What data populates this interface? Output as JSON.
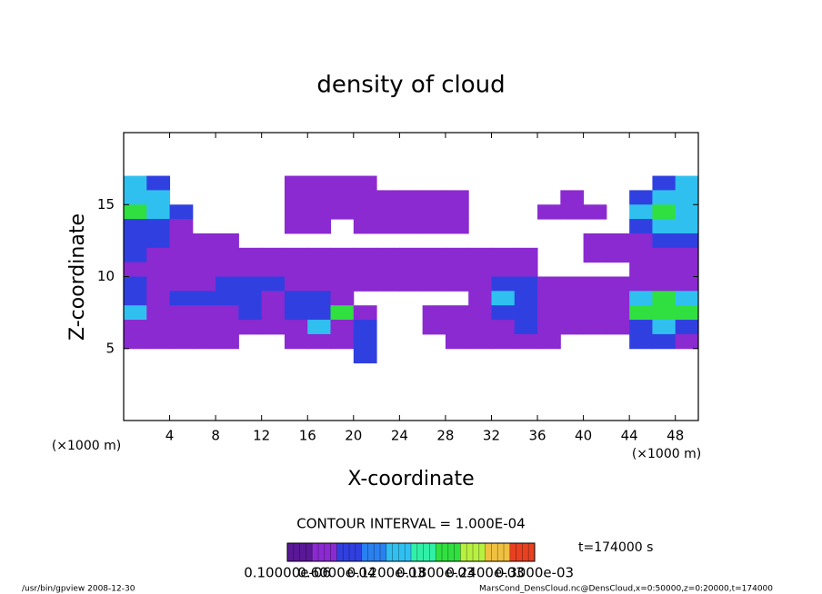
{
  "chart_data": {
    "type": "heatmap",
    "title": "density of cloud",
    "xlabel": "X-coordinate",
    "ylabel": "Z-coordinate",
    "x_unit_label": "(×1000 m)",
    "y_unit_label": "(×1000 m)",
    "contour_interval": "CONTOUR INTERVAL = 1.000E-04",
    "time_label": "t=174000 s",
    "footer_left": "/usr/bin/gpview  2008-12-30",
    "footer_right": "MarsCond_DensCloud.nc@DensCloud,x=0:50000,z=0:20000,t=174000",
    "xlim": [
      0,
      50
    ],
    "ylim": [
      0,
      20
    ],
    "xticks": [
      4,
      8,
      12,
      16,
      20,
      24,
      28,
      32,
      36,
      40,
      44,
      48
    ],
    "yticks": [
      5,
      10,
      15
    ],
    "x_edges": [
      0,
      2,
      4,
      6,
      8,
      10,
      12,
      14,
      16,
      18,
      20,
      22,
      24,
      26,
      28,
      30,
      32,
      34,
      36,
      38,
      40,
      42,
      44,
      46,
      48,
      50
    ],
    "z_edges": [
      17,
      16,
      15,
      14,
      13,
      12,
      11,
      10,
      9,
      8,
      7,
      6,
      5,
      4
    ],
    "values": [
      [
        0.00013,
        8e-05,
        null,
        null,
        null,
        null,
        null,
        4e-05,
        4e-05,
        4e-05,
        4e-05,
        null,
        null,
        null,
        null,
        null,
        null,
        null,
        null,
        null,
        null,
        null,
        null,
        8e-05,
        0.00013
      ],
      [
        0.00013,
        0.00013,
        null,
        null,
        null,
        null,
        null,
        4e-05,
        4e-05,
        4e-05,
        4e-05,
        4e-05,
        4e-05,
        4e-05,
        4e-05,
        null,
        null,
        null,
        null,
        4e-05,
        null,
        null,
        8e-05,
        0.00013,
        0.00013
      ],
      [
        0.00019,
        0.00013,
        8e-05,
        null,
        null,
        null,
        null,
        4e-05,
        4e-05,
        4e-05,
        4e-05,
        4e-05,
        4e-05,
        4e-05,
        4e-05,
        null,
        null,
        null,
        4e-05,
        4e-05,
        4e-05,
        null,
        0.00013,
        0.00019,
        0.00013
      ],
      [
        8e-05,
        8e-05,
        4e-05,
        null,
        null,
        null,
        null,
        4e-05,
        4e-05,
        null,
        4e-05,
        4e-05,
        4e-05,
        4e-05,
        4e-05,
        null,
        null,
        null,
        null,
        null,
        null,
        null,
        8e-05,
        0.00013,
        0.00013
      ],
      [
        8e-05,
        8e-05,
        4e-05,
        4e-05,
        4e-05,
        null,
        null,
        null,
        null,
        null,
        null,
        null,
        null,
        null,
        null,
        null,
        null,
        null,
        null,
        null,
        4e-05,
        4e-05,
        4e-05,
        8e-05,
        8e-05
      ],
      [
        8e-05,
        4e-05,
        4e-05,
        4e-05,
        4e-05,
        4e-05,
        4e-05,
        4e-05,
        4e-05,
        4e-05,
        4e-05,
        4e-05,
        4e-05,
        4e-05,
        4e-05,
        4e-05,
        4e-05,
        4e-05,
        null,
        null,
        4e-05,
        4e-05,
        4e-05,
        4e-05,
        4e-05
      ],
      [
        4e-05,
        4e-05,
        4e-05,
        4e-05,
        4e-05,
        4e-05,
        4e-05,
        4e-05,
        4e-05,
        4e-05,
        4e-05,
        4e-05,
        4e-05,
        4e-05,
        4e-05,
        4e-05,
        4e-05,
        4e-05,
        null,
        null,
        null,
        null,
        4e-05,
        4e-05,
        4e-05
      ],
      [
        8e-05,
        4e-05,
        4e-05,
        4e-05,
        8e-05,
        8e-05,
        8e-05,
        4e-05,
        4e-05,
        4e-05,
        4e-05,
        4e-05,
        4e-05,
        4e-05,
        4e-05,
        4e-05,
        8e-05,
        8e-05,
        4e-05,
        4e-05,
        4e-05,
        4e-05,
        4e-05,
        4e-05,
        4e-05
      ],
      [
        8e-05,
        4e-05,
        8e-05,
        8e-05,
        8e-05,
        8e-05,
        4e-05,
        8e-05,
        8e-05,
        4e-05,
        null,
        null,
        null,
        null,
        null,
        4e-05,
        0.00013,
        8e-05,
        4e-05,
        4e-05,
        4e-05,
        4e-05,
        0.00013,
        0.00019,
        0.00013
      ],
      [
        0.00013,
        4e-05,
        4e-05,
        4e-05,
        4e-05,
        8e-05,
        4e-05,
        8e-05,
        8e-05,
        0.00019,
        4e-05,
        null,
        null,
        4e-05,
        4e-05,
        4e-05,
        8e-05,
        8e-05,
        4e-05,
        4e-05,
        4e-05,
        4e-05,
        0.00019,
        0.00019,
        0.00019
      ],
      [
        4e-05,
        4e-05,
        4e-05,
        4e-05,
        4e-05,
        4e-05,
        4e-05,
        4e-05,
        0.00013,
        4e-05,
        8e-05,
        null,
        null,
        4e-05,
        4e-05,
        4e-05,
        4e-05,
        8e-05,
        4e-05,
        4e-05,
        4e-05,
        4e-05,
        8e-05,
        0.00013,
        8e-05
      ],
      [
        4e-05,
        4e-05,
        4e-05,
        4e-05,
        4e-05,
        null,
        null,
        4e-05,
        4e-05,
        4e-05,
        8e-05,
        null,
        null,
        null,
        4e-05,
        4e-05,
        4e-05,
        4e-05,
        4e-05,
        null,
        null,
        null,
        8e-05,
        8e-05,
        4e-05
      ],
      [
        null,
        null,
        null,
        null,
        null,
        null,
        null,
        null,
        null,
        null,
        8e-05,
        null,
        null,
        null,
        null,
        null,
        null,
        null,
        null,
        null,
        null,
        null,
        null,
        null,
        null
      ]
    ],
    "clim": [
      0,
      0.0003
    ],
    "colors": [
      "#5a1898",
      "#8a2ad0",
      "#3040e0",
      "#2a80f0",
      "#30c0f0",
      "#30f0a8",
      "#30e040",
      "#b8f040",
      "#f0c040",
      "#e84020"
    ],
    "cticks": [
      {
        "value": 1e-07,
        "label": "0.10000e-06"
      },
      {
        "value": 6e-05,
        "label": "0.6000e-04"
      },
      {
        "value": 0.00012,
        "label": "0.1200e-03"
      },
      {
        "value": 0.00018,
        "label": "0.1800e-03"
      },
      {
        "value": 0.00024,
        "label": "0.2400e-03"
      },
      {
        "value": 0.0003,
        "label": "0.3000e-03"
      }
    ]
  }
}
